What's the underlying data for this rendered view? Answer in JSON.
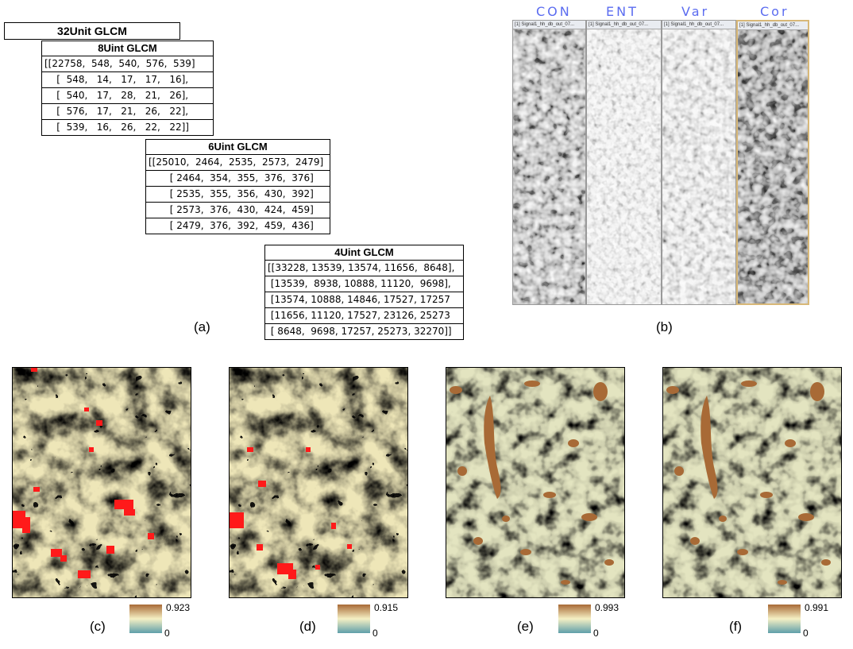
{
  "glcm": {
    "title_32": "32Unit GLCM",
    "t8": {
      "title": "8Uint GLCM",
      "rows": [
        "[[22758,  548,  540,  576,  539]",
        "    [  548,   14,   17,   17,   16],",
        "    [  540,   17,   28,   21,   26],",
        "    [  576,   17,   21,   26,   22],",
        "    [  539,   16,   26,   22,   22]]"
      ]
    },
    "t6": {
      "title": "6Uint GLCM",
      "rows": [
        "[[25010,  2464,  2535,  2573,  2479]",
        "       [ 2464,  354,  355,  376,  376]",
        "       [ 2535,  355,  356,  430,  392]",
        "       [ 2573,  376,  430,  424,  459]",
        "       [ 2479,  376,  392,  459,  436]"
      ]
    },
    "t4": {
      "title": "4Uint GLCM",
      "rows": [
        "[[33228, 13539, 13574, 11656,  8648],",
        " [13539,  8938, 10888, 11120,  9698],",
        " [13574, 10888, 14846, 17527, 17257",
        " [11656, 11120, 17527, 23126, 25273",
        " [ 8648,  9698, 17257, 25273, 32270]]"
      ]
    }
  },
  "panel_labels": {
    "a": "(a)",
    "b": "(b)",
    "c": "(c)",
    "d": "(d)",
    "e": "(e)",
    "f": "(f)"
  },
  "texture_panels": {
    "headers": [
      "CON",
      "ENT",
      "Var",
      "Cor"
    ],
    "window_titles": [
      "[1] Signal1_hh_db_out_07...",
      "[1] Signal1_hh_db_out_07...",
      "[1] Signal1_hh_db_out_07...",
      "[1] Signal1_hh_db_out_07..."
    ],
    "header_color": "#5b6cf0"
  },
  "maps": [
    {
      "label": "(c)",
      "max": "0.923",
      "min": "0"
    },
    {
      "label": "(d)",
      "max": "0.915",
      "min": "0"
    },
    {
      "label": "(e)",
      "max": "0.993",
      "min": "0"
    },
    {
      "label": "(f)",
      "max": "0.991",
      "min": "0"
    }
  ],
  "colors": {
    "high": "#a86a36",
    "mid": "#f5f0c4",
    "low": "#5f9faa",
    "highlight": "#ff1a1a",
    "cor_border": "#d8b878"
  }
}
